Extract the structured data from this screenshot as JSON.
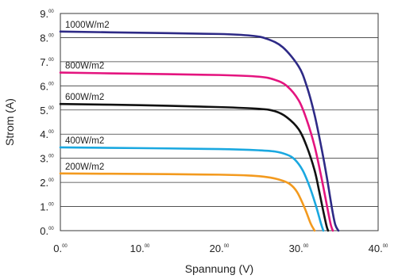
{
  "chart_data": {
    "type": "line",
    "xlabel": "Spannung (V)",
    "ylabel": "Strom (A)",
    "xlim": [
      0,
      40
    ],
    "ylim": [
      0,
      9
    ],
    "grid": "horizontal",
    "x_ticks": [
      0,
      10,
      20,
      30,
      40
    ],
    "y_ticks": [
      0,
      1,
      2,
      3,
      4,
      5,
      6,
      7,
      8,
      9
    ],
    "x_tick_labels": [
      {
        "main": "0.",
        "sup": "00"
      },
      {
        "main": "10.",
        "sup": "00"
      },
      {
        "main": "20.",
        "sup": "00"
      },
      {
        "main": "30.",
        "sup": "00"
      },
      {
        "main": "40.",
        "sup": "00"
      }
    ],
    "y_tick_labels": [
      {
        "main": "0.",
        "sup": "00"
      },
      {
        "main": "1.",
        "sup": "00"
      },
      {
        "main": "2.",
        "sup": "00"
      },
      {
        "main": "3.",
        "sup": "00"
      },
      {
        "main": "4.",
        "sup": "00"
      },
      {
        "main": "5.",
        "sup": "00"
      },
      {
        "main": "6.",
        "sup": "00"
      },
      {
        "main": "7.",
        "sup": "00"
      },
      {
        "main": "8.",
        "sup": "00"
      },
      {
        "main": "9.",
        "sup": "00"
      }
    ],
    "series": [
      {
        "name": "1000W/m2",
        "color": "#2e2a86",
        "x": [
          0,
          10,
          20,
          24,
          26,
          28,
          30,
          31,
          32,
          33,
          33.6,
          34.2,
          34.6,
          35.0
        ],
        "y": [
          8.25,
          8.2,
          8.15,
          8.08,
          7.95,
          7.6,
          6.8,
          6.0,
          4.8,
          3.2,
          2.1,
          0.9,
          0.25,
          0
        ]
      },
      {
        "name": "800W/m2",
        "color": "#e4147f",
        "x": [
          0,
          10,
          20,
          25,
          27,
          28.5,
          30,
          31,
          32,
          32.8,
          33.4,
          34.0,
          34.3
        ],
        "y": [
          6.55,
          6.5,
          6.45,
          6.38,
          6.25,
          6.0,
          5.4,
          4.6,
          3.5,
          2.3,
          1.3,
          0.3,
          0
        ]
      },
      {
        "name": "600W/m2",
        "color": "#111111",
        "x": [
          0,
          10,
          20,
          25,
          27,
          28.5,
          30,
          31,
          32,
          32.6,
          33.1,
          33.5,
          33.7
        ],
        "y": [
          5.25,
          5.2,
          5.12,
          5.05,
          4.95,
          4.7,
          4.2,
          3.5,
          2.5,
          1.6,
          0.8,
          0.2,
          0
        ]
      },
      {
        "name": "400W/m2",
        "color": "#1aa8e0",
        "x": [
          0,
          10,
          20,
          25,
          27,
          28.5,
          29.5,
          30.5,
          31.4,
          32.2,
          32.8,
          33.1
        ],
        "y": [
          3.45,
          3.42,
          3.38,
          3.33,
          3.28,
          3.15,
          2.95,
          2.5,
          1.8,
          1.0,
          0.3,
          0
        ]
      },
      {
        "name": "200W/m2",
        "color": "#f39a1e",
        "x": [
          0,
          10,
          20,
          24,
          26,
          27.5,
          28.8,
          29.8,
          30.8,
          31.5,
          32.0
        ],
        "y": [
          2.37,
          2.35,
          2.32,
          2.28,
          2.22,
          2.12,
          1.95,
          1.6,
          0.9,
          0.3,
          0
        ]
      }
    ]
  }
}
